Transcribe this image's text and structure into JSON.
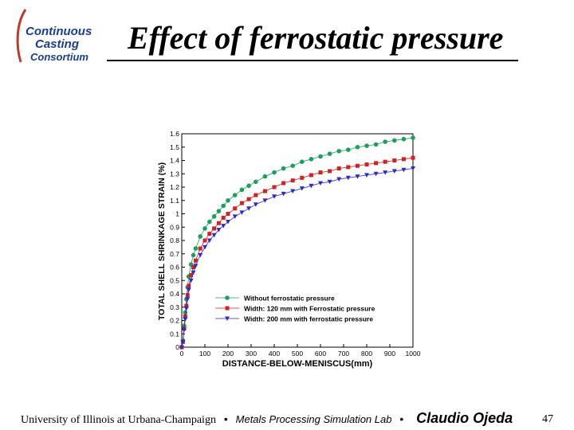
{
  "logo": {
    "lines": [
      "Continuous",
      "Casting",
      "Consortium"
    ],
    "colors": {
      "text": "#1a3f8f",
      "arc": "#c0392b"
    }
  },
  "title": "Effect of ferrostatic pressure",
  "footer": {
    "institution": "University of Illinois at Urbana-Champaign",
    "lab": "Metals Processing Simulation Lab",
    "separator": "•",
    "author": "Claudio Ojeda",
    "page": "47"
  },
  "chart_data": {
    "type": "line",
    "xlabel": "DISTANCE-BELOW-MENISCUS(mm)",
    "ylabel": "TOTAL SHELL SHRINKAGE STRAIN (%)",
    "xlim": [
      0,
      1000
    ],
    "ylim": [
      0,
      1.6
    ],
    "xticks": [
      0,
      100,
      200,
      300,
      400,
      500,
      600,
      700,
      800,
      900,
      1000
    ],
    "yticks": [
      0,
      0.1,
      0.2,
      0.3,
      0.4,
      0.5,
      0.6,
      0.7,
      0.8,
      0.9,
      1,
      1.1,
      1.2,
      1.3,
      1.4,
      1.5,
      1.6
    ],
    "legend_position": "center-right",
    "series": [
      {
        "name": "Without ferrostatic pressure",
        "color": "#1aa05a",
        "marker": "circle",
        "x": [
          0,
          5,
          10,
          15,
          20,
          25,
          30,
          40,
          50,
          60,
          80,
          100,
          120,
          140,
          160,
          180,
          200,
          230,
          260,
          290,
          320,
          360,
          400,
          440,
          480,
          520,
          560,
          600,
          640,
          680,
          720,
          760,
          800,
          840,
          880,
          920,
          960,
          1000
        ],
        "values": [
          0,
          0.05,
          0.16,
          0.26,
          0.36,
          0.45,
          0.53,
          0.62,
          0.69,
          0.74,
          0.83,
          0.89,
          0.94,
          0.98,
          1.02,
          1.06,
          1.1,
          1.14,
          1.18,
          1.21,
          1.24,
          1.28,
          1.31,
          1.34,
          1.36,
          1.39,
          1.41,
          1.43,
          1.45,
          1.47,
          1.48,
          1.5,
          1.51,
          1.52,
          1.54,
          1.55,
          1.56,
          1.57
        ]
      },
      {
        "name": "Width: 120 mm with Ferrostatic pressure",
        "color": "#d42020",
        "marker": "square",
        "x": [
          0,
          5,
          10,
          15,
          20,
          25,
          30,
          40,
          50,
          60,
          80,
          100,
          120,
          140,
          160,
          180,
          200,
          230,
          260,
          290,
          320,
          360,
          400,
          440,
          480,
          520,
          560,
          600,
          640,
          680,
          720,
          760,
          800,
          840,
          880,
          920,
          960,
          1000
        ],
        "values": [
          0,
          0.04,
          0.14,
          0.23,
          0.31,
          0.39,
          0.46,
          0.54,
          0.6,
          0.65,
          0.74,
          0.8,
          0.85,
          0.89,
          0.93,
          0.97,
          1.0,
          1.04,
          1.08,
          1.11,
          1.14,
          1.17,
          1.2,
          1.23,
          1.25,
          1.27,
          1.29,
          1.31,
          1.32,
          1.34,
          1.35,
          1.36,
          1.37,
          1.38,
          1.39,
          1.4,
          1.41,
          1.42
        ]
      },
      {
        "name": "Width: 200 mm with ferrostatic pressure",
        "color": "#2a2ad0",
        "marker": "triangle-down",
        "x": [
          0,
          5,
          10,
          15,
          20,
          25,
          30,
          40,
          50,
          60,
          80,
          100,
          120,
          140,
          160,
          180,
          200,
          230,
          260,
          290,
          320,
          360,
          400,
          440,
          480,
          520,
          560,
          600,
          640,
          680,
          720,
          760,
          800,
          840,
          880,
          920,
          960,
          1000
        ],
        "values": [
          0,
          0.04,
          0.13,
          0.21,
          0.29,
          0.36,
          0.43,
          0.5,
          0.56,
          0.61,
          0.69,
          0.75,
          0.8,
          0.84,
          0.88,
          0.91,
          0.94,
          0.98,
          1.01,
          1.04,
          1.07,
          1.1,
          1.13,
          1.15,
          1.17,
          1.19,
          1.21,
          1.23,
          1.24,
          1.26,
          1.27,
          1.28,
          1.29,
          1.3,
          1.31,
          1.32,
          1.33,
          1.34
        ]
      }
    ]
  }
}
